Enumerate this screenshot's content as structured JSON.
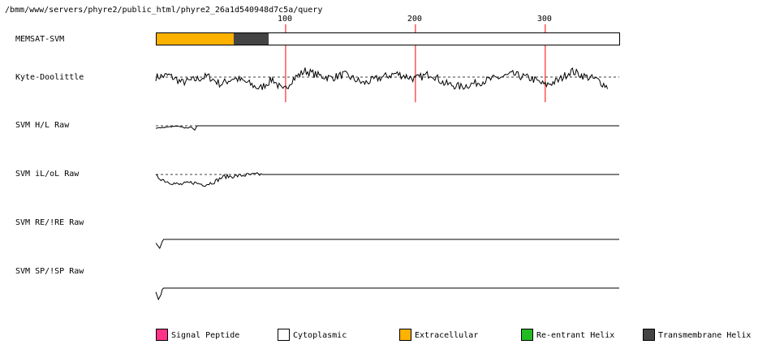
{
  "path": "/bmm/www/servers/phyre2/public_html/phyre2_26a1d540948d7c5a/query",
  "colors": {
    "signal_peptide": "#ff3388",
    "cytoplasmic": "#ffffff",
    "extracellular": "#ffb100",
    "reentrant_helix": "#22bb22",
    "transmembrane_helix": "#444444",
    "residue_marker": "#ff0000"
  },
  "legend": [
    {
      "label": "Signal Peptide",
      "color_key": "signal_peptide"
    },
    {
      "label": "Cytoplasmic",
      "color_key": "cytoplasmic"
    },
    {
      "label": "Extracellular",
      "color_key": "extracellular"
    },
    {
      "label": "Re-entrant Helix",
      "color_key": "reentrant_helix"
    },
    {
      "label": "Transmembrane Helix",
      "color_key": "transmembrane_helix"
    }
  ],
  "chart_data": {
    "type": "line",
    "x_domain": [
      0,
      357
    ],
    "ticks": [
      100,
      200,
      300
    ],
    "tracks": [
      {
        "id": "memsat",
        "label": "MEMSAT-SVM",
        "kind": "topology",
        "segments": [
          {
            "start": 1,
            "end": 60,
            "color_key": "extracellular"
          },
          {
            "start": 61,
            "end": 87,
            "color_key": "transmembrane_helix"
          },
          {
            "start": 88,
            "end": 357,
            "color_key": "cytoplasmic"
          }
        ]
      },
      {
        "id": "kd",
        "label": "Kyte-Doolittle",
        "kind": "profile",
        "x_max": 348,
        "knots": [
          [
            0,
            0
          ],
          [
            10,
            0.2
          ],
          [
            20,
            -0.6
          ],
          [
            30,
            -0.3
          ],
          [
            40,
            0.1
          ],
          [
            50,
            -0.8
          ],
          [
            60,
            -0.1
          ],
          [
            70,
            -0.6
          ],
          [
            80,
            -1.3
          ],
          [
            90,
            -0.2
          ],
          [
            98,
            -1.6
          ],
          [
            105,
            -0.3
          ],
          [
            115,
            0.7
          ],
          [
            125,
            0.2
          ],
          [
            135,
            -0.1
          ],
          [
            145,
            0.3
          ],
          [
            160,
            -0.7
          ],
          [
            170,
            -0.2
          ],
          [
            185,
            0.4
          ],
          [
            200,
            -0.2
          ],
          [
            212,
            0.4
          ],
          [
            222,
            -0.7
          ],
          [
            235,
            -1.1
          ],
          [
            248,
            -0.6
          ],
          [
            260,
            -0.2
          ],
          [
            275,
            0.3
          ],
          [
            290,
            -0.2
          ],
          [
            300,
            -0.9
          ],
          [
            310,
            -0.4
          ],
          [
            320,
            0.7
          ],
          [
            330,
            0.1
          ],
          [
            340,
            -0.3
          ],
          [
            348,
            -1.1
          ]
        ],
        "amplitude": 0.45
      },
      {
        "id": "hl",
        "label": "SVM H/L Raw",
        "kind": "profile",
        "x_max": 357,
        "knots": [
          [
            0,
            -0.6
          ],
          [
            8,
            -0.35
          ],
          [
            16,
            -0.1
          ],
          [
            22,
            -0.5
          ],
          [
            28,
            -0.4
          ],
          [
            30,
            -1.0
          ],
          [
            32,
            0
          ],
          [
            357,
            0
          ]
        ],
        "amplitude": 0.12,
        "noise_until": 32
      },
      {
        "id": "iloL",
        "label": "SVM iL/oL Raw",
        "kind": "profile",
        "x_max": 357,
        "knots": [
          [
            0,
            -0.3
          ],
          [
            8,
            -1.2
          ],
          [
            18,
            -1.8
          ],
          [
            28,
            -1.4
          ],
          [
            38,
            -1.8
          ],
          [
            45,
            -1.3
          ],
          [
            52,
            -0.4
          ],
          [
            60,
            -0.3
          ],
          [
            70,
            -0.1
          ],
          [
            80,
            0
          ],
          [
            357,
            0
          ]
        ],
        "amplitude": 0.35,
        "noise_until": 82
      },
      {
        "id": "re",
        "label": "SVM RE/!RE Raw",
        "kind": "profile",
        "x_max": 357,
        "knots": [
          [
            0,
            -0.9
          ],
          [
            3,
            -2.2
          ],
          [
            5,
            -0.5
          ],
          [
            6,
            0
          ],
          [
            357,
            0
          ]
        ],
        "amplitude": 0,
        "noise_until": 6
      },
      {
        "id": "sp",
        "label": "SVM SP/!SP Raw",
        "kind": "profile",
        "x_max": 357,
        "knots": [
          [
            0,
            -1.2
          ],
          [
            2,
            -3.5
          ],
          [
            4,
            -2.0
          ],
          [
            5,
            -0.4
          ],
          [
            6,
            0
          ],
          [
            357,
            0
          ]
        ],
        "amplitude": 0,
        "noise_until": 6
      }
    ]
  }
}
